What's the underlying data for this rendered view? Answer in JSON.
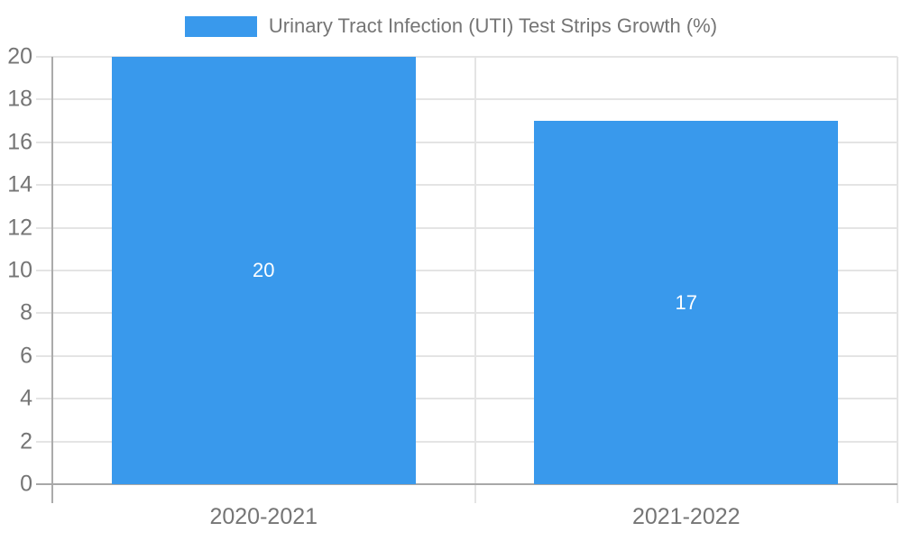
{
  "chart_data": {
    "type": "bar",
    "title": "Urinary Tract Infection (UTI) Test Strips Growth (%)",
    "categories": [
      "2020-2021",
      "2021-2022"
    ],
    "values": [
      20,
      17
    ],
    "data_labels": [
      "20",
      "17"
    ],
    "series": [
      {
        "name": "Urinary Tract Infection (UTI) Test Strips Growth (%)",
        "values": [
          20,
          17
        ]
      }
    ],
    "xlabel": "",
    "ylabel": "",
    "ylim": [
      0,
      20
    ],
    "yticks": [
      0,
      2,
      4,
      6,
      8,
      10,
      12,
      14,
      16,
      18,
      20
    ],
    "grid": true,
    "legend_position": "top-center",
    "colors": {
      "bar": "#3999EC",
      "bar_label": "#FFFFFF",
      "axis_text": "#757575",
      "gridline": "#E4E4E4",
      "axis_line": "#ABABAB",
      "baseline": "#A8A8A8",
      "background": "#FFFFFF"
    }
  }
}
